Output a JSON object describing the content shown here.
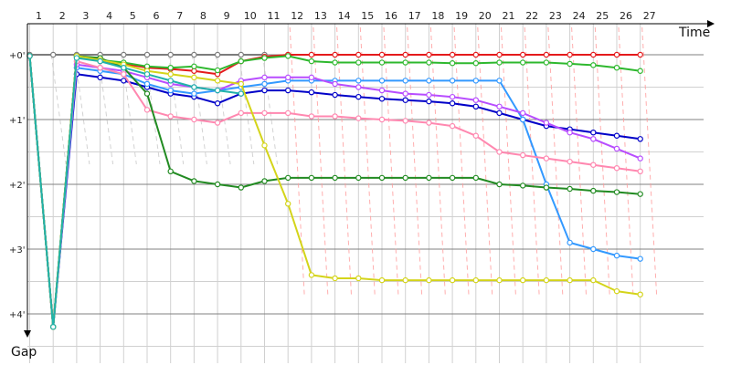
{
  "chart_data": {
    "type": "line",
    "title": "",
    "xlabel": "Time",
    "ylabel": "Gap",
    "x": [
      1,
      2,
      3,
      4,
      5,
      6,
      7,
      8,
      9,
      10,
      11,
      12,
      13,
      14,
      15,
      16,
      17,
      18,
      19,
      20,
      21,
      22,
      23,
      24,
      25,
      26,
      27
    ],
    "x_tick_labels": [
      "1",
      "2",
      "3",
      "4",
      "5",
      "6",
      "7",
      "8",
      "9",
      "10",
      "11",
      "12",
      "13",
      "14",
      "15",
      "16",
      "17",
      "18",
      "19",
      "20",
      "21",
      "22",
      "23",
      "24",
      "25",
      "26",
      "27"
    ],
    "y_tick_labels": [
      "+0'",
      "+1'",
      "+2'",
      "+3'",
      "+4'"
    ],
    "y_tick_values": [
      0,
      1,
      2,
      3,
      4
    ],
    "ylim": [
      -0.5,
      4.6
    ],
    "y_inverted": true,
    "grid": true,
    "legend": "none",
    "colors": {
      "grid": "#d0d0d0",
      "major_grid": "#808080",
      "axis": "#000000",
      "pit_line": "#ff9a9a"
    },
    "series": [
      {
        "color": "#7c7c7c",
        "values": [
          0,
          0,
          0,
          0,
          0,
          0,
          0,
          0,
          0,
          0,
          0,
          null,
          null,
          null,
          null,
          null,
          null,
          null,
          null,
          null,
          null,
          null,
          null,
          null,
          null,
          null,
          null
        ]
      },
      {
        "color": "#e41a1c",
        "values": [
          0.02,
          4.2,
          0.02,
          0.1,
          0.14,
          0.2,
          0.22,
          0.25,
          0.3,
          0.1,
          0.03,
          0,
          0,
          0,
          0,
          0,
          0,
          0,
          0,
          0,
          0,
          0,
          0,
          0,
          0,
          0,
          0
        ]
      },
      {
        "color": "#2eb82e",
        "values": [
          0.02,
          4.2,
          0.02,
          0.08,
          0.12,
          0.18,
          0.2,
          0.18,
          0.24,
          0.1,
          0.05,
          0.02,
          0.1,
          0.12,
          0.12,
          0.12,
          0.12,
          0.12,
          0.13,
          0.13,
          0.12,
          0.12,
          0.12,
          0.14,
          0.16,
          0.2,
          0.25
        ]
      },
      {
        "color": "#0000c8",
        "values": [
          0.02,
          4.2,
          0.3,
          0.35,
          0.4,
          0.5,
          0.6,
          0.65,
          0.75,
          0.6,
          0.55,
          0.55,
          0.58,
          0.62,
          0.65,
          0.68,
          0.7,
          0.72,
          0.75,
          0.8,
          0.9,
          1.0,
          1.1,
          1.15,
          1.2,
          1.25,
          1.3
        ]
      },
      {
        "color": "#3399ff",
        "values": [
          0.02,
          4.2,
          0.2,
          0.25,
          0.3,
          0.45,
          0.55,
          0.6,
          0.55,
          0.5,
          0.45,
          0.4,
          0.4,
          0.4,
          0.4,
          0.4,
          0.4,
          0.4,
          0.4,
          0.4,
          0.4,
          1.0,
          2.0,
          2.9,
          3.0,
          3.1,
          3.15
        ]
      },
      {
        "color": "#b84dff",
        "values": [
          0.02,
          4.2,
          0.15,
          0.2,
          0.25,
          0.35,
          0.45,
          0.5,
          0.55,
          0.4,
          0.35,
          0.35,
          0.35,
          0.45,
          0.5,
          0.55,
          0.6,
          0.62,
          0.65,
          0.7,
          0.8,
          0.9,
          1.05,
          1.2,
          1.3,
          1.45,
          1.6
        ]
      },
      {
        "color": "#ff88b0",
        "values": [
          0.02,
          4.2,
          0.1,
          0.2,
          0.3,
          0.85,
          0.95,
          1.0,
          1.05,
          0.9,
          0.9,
          0.9,
          0.95,
          0.95,
          0.98,
          1.0,
          1.02,
          1.05,
          1.1,
          1.25,
          1.5,
          1.55,
          1.6,
          1.65,
          1.7,
          1.75,
          1.8
        ]
      },
      {
        "color": "#228b22",
        "values": [
          0.02,
          4.2,
          0.02,
          0.05,
          0.2,
          0.6,
          1.8,
          1.95,
          2.0,
          2.05,
          1.95,
          1.9,
          1.9,
          1.9,
          1.9,
          1.9,
          1.9,
          1.9,
          1.9,
          1.9,
          2.0,
          2.02,
          2.05,
          2.07,
          2.1,
          2.12,
          2.15
        ]
      },
      {
        "color": "#d4d41a",
        "values": [
          0.02,
          4.2,
          0.02,
          0.08,
          0.15,
          0.25,
          0.3,
          0.35,
          0.4,
          0.45,
          1.4,
          2.3,
          3.4,
          3.45,
          3.45,
          3.48,
          3.48,
          3.48,
          3.48,
          3.48,
          3.48,
          3.48,
          3.48,
          3.48,
          3.48,
          3.65,
          3.7
        ]
      },
      {
        "color": "#20b2aa",
        "values": [
          0.02,
          4.2,
          0.05,
          0.1,
          0.2,
          0.3,
          0.4,
          0.5,
          0.55,
          0.6,
          null,
          null,
          null,
          null,
          null,
          null,
          null,
          null,
          null,
          null,
          null,
          null,
          null,
          null,
          null,
          null,
          null
        ]
      }
    ]
  }
}
